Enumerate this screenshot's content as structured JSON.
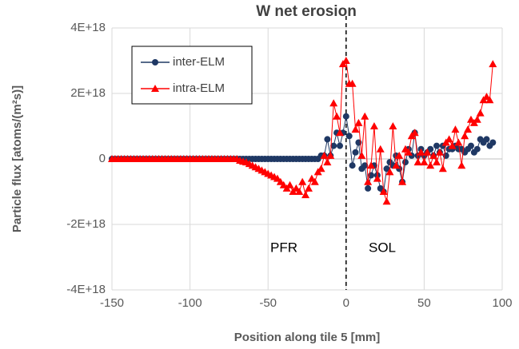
{
  "chart_data": {
    "type": "line",
    "title": "W net erosion",
    "x_label": "Position along tile 5 [mm]",
    "y_label": "Particle flux [atoms/(m²s)]",
    "annotations": [
      "PFR",
      "SOL"
    ],
    "vline": 0,
    "xlim": [
      -150,
      100
    ],
    "xticks": [
      -150,
      -100,
      -50,
      0,
      50,
      100
    ],
    "ylim": [
      -4e+18,
      4e+18
    ],
    "yticks": [
      {
        "value": -4e+18,
        "label": "-4E+18"
      },
      {
        "value": -2e+18,
        "label": "-2E+18"
      },
      0,
      {
        "value": 2e+18,
        "label": "2E+18"
      },
      {
        "value": 4e+18,
        "label": "4E+18"
      }
    ],
    "grid": true,
    "legend": "upper left",
    "x": [
      -150,
      -148,
      -146,
      -144,
      -142,
      -140,
      -138,
      -136,
      -134,
      -132,
      -130,
      -128,
      -126,
      -124,
      -122,
      -120,
      -118,
      -116,
      -114,
      -112,
      -110,
      -108,
      -106,
      -104,
      -102,
      -100,
      -98,
      -96,
      -94,
      -92,
      -90,
      -88,
      -86,
      -84,
      -82,
      -80,
      -78,
      -76,
      -74,
      -72,
      -70,
      -68,
      -66,
      -64,
      -62,
      -60,
      -58,
      -56,
      -54,
      -52,
      -50,
      -48,
      -46,
      -44,
      -42,
      -40,
      -38,
      -36,
      -34,
      -32,
      -30,
      -28,
      -26,
      -24,
      -22,
      -20,
      -18,
      -16,
      -14,
      -12,
      -10,
      -8,
      -6,
      -4,
      -2,
      0,
      2,
      4,
      6,
      8,
      10,
      12,
      14,
      16,
      18,
      20,
      22,
      24,
      26,
      28,
      30,
      32,
      34,
      36,
      38,
      40,
      42,
      44,
      46,
      48,
      50,
      52,
      54,
      56,
      58,
      60,
      62,
      64,
      66,
      68,
      70,
      72,
      74,
      76,
      78,
      80,
      82,
      84,
      86,
      88,
      90,
      92,
      94
    ],
    "series": [
      {
        "name": "inter-ELM",
        "color": "#1f3864",
        "marker": "circle",
        "values": [
          0,
          0,
          0,
          0,
          0,
          0,
          0,
          0,
          0,
          0,
          0,
          0,
          0,
          0,
          0,
          0,
          0,
          0,
          0,
          0,
          0,
          0,
          0,
          0,
          0,
          0,
          0,
          0,
          0,
          0,
          0,
          0,
          0,
          0,
          0,
          0,
          0,
          0,
          0,
          0,
          0,
          0,
          0,
          0,
          0,
          0,
          0,
          0,
          0,
          0,
          0,
          0,
          0,
          0,
          0,
          0,
          0,
          0,
          0,
          0,
          0,
          0,
          0,
          0,
          0,
          0,
          0,
          1e+17,
          1e+17,
          6e+17,
          1e+17,
          4e+17,
          8e+17,
          4e+17,
          8e+17,
          1.3e+18,
          7e+17,
          -2e+17,
          2e+17,
          5e+17,
          -3e+17,
          -2e+17,
          -9e+17,
          -5e+17,
          -2e+17,
          -5e+17,
          -9e+17,
          -1e+18,
          -3e+17,
          -1e+17,
          -2e+17,
          1e+17,
          -3e+17,
          -7e+17,
          -1e+17,
          3e+17,
          1e+17,
          8e+17,
          1e+17,
          3e+17,
          1e+17,
          2e+17,
          3e+17,
          1e+17,
          4e+17,
          2e+17,
          4e+17,
          1e+17,
          3e+17,
          3e+17,
          4e+17,
          3e+17,
          3e+17,
          2e+17,
          3e+17,
          4e+17,
          2e+17,
          3e+17,
          6e+17,
          5e+17,
          6e+17,
          4e+17,
          5e+17
        ]
      },
      {
        "name": "intra-ELM",
        "color": "#ff0000",
        "marker": "triangle",
        "values": [
          0,
          0,
          0,
          0,
          0,
          0,
          0,
          0,
          0,
          0,
          0,
          0,
          0,
          0,
          0,
          0,
          0,
          0,
          0,
          0,
          0,
          0,
          0,
          0,
          0,
          0,
          0,
          0,
          0,
          0,
          0,
          0,
          0,
          0,
          0,
          0,
          0,
          0,
          0,
          0,
          0,
          -5e+16,
          -8e+16,
          -1e+17,
          -1.5e+17,
          -2e+17,
          -2.5e+17,
          -3e+17,
          -3.5e+17,
          -4e+17,
          -4.5e+17,
          -5e+17,
          -5.5e+17,
          -6e+17,
          -7e+17,
          -8e+17,
          -9e+17,
          -8e+17,
          -1e+18,
          -9e+17,
          -1e+18,
          -7e+17,
          -1.1e+18,
          -9e+17,
          -6e+17,
          -7e+17,
          -4e+17,
          -3e+17,
          1e+17,
          -1e+17,
          1e+17,
          1.7e+18,
          1.3e+18,
          8e+17,
          2.9e+18,
          3e+18,
          2.3e+18,
          2.3e+18,
          9e+17,
          1.1e+18,
          1e+17,
          1.3e+18,
          -7e+17,
          -2e+17,
          1e+18,
          -6e+17,
          3e+17,
          -1e+18,
          -1.3e+18,
          -4e+17,
          1e+18,
          -2e+17,
          1e+17,
          -7e+17,
          3e+17,
          2e+17,
          7e+17,
          8e+17,
          -1e+17,
          2e+17,
          -1e+17,
          2e+17,
          -2e+17,
          1e+17,
          -1e+17,
          2e+17,
          -3e+17,
          5e+17,
          6e+17,
          4e+17,
          9e+17,
          5e+17,
          -2e+17,
          7e+17,
          9e+17,
          1.2e+18,
          1.1e+18,
          1.2e+18,
          1.4e+18,
          1.8e+18,
          1.9e+18,
          1.8e+18,
          2.9e+18
        ]
      }
    ]
  }
}
